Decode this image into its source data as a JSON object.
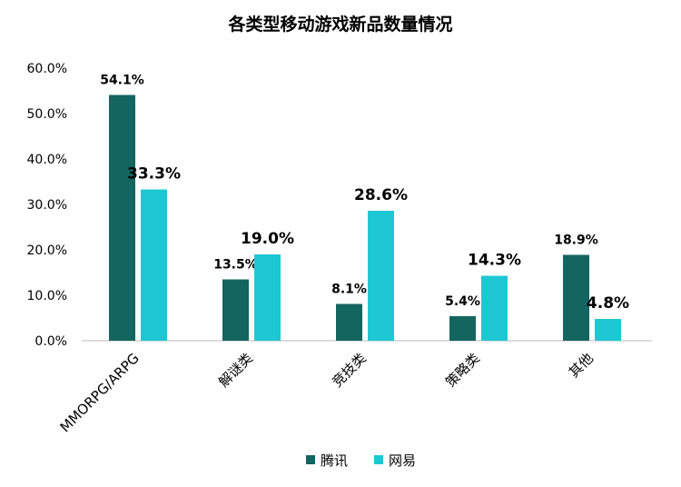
{
  "chart_data": {
    "type": "bar",
    "title": "各类型移动游戏新品数量情况",
    "categories": [
      "MMORPG/ARPG",
      "解谜类",
      "竞技类",
      "策略类",
      "其他"
    ],
    "series": [
      {
        "name": "腾讯",
        "values": [
          54.1,
          13.5,
          8.1,
          5.4,
          18.9
        ],
        "labels": [
          "54.1%",
          "13.5%",
          "8.1%",
          "5.4%",
          "18.9%"
        ]
      },
      {
        "name": "网易",
        "values": [
          33.3,
          19.0,
          28.6,
          14.3,
          4.8
        ],
        "labels": [
          "33.3%",
          "19.0%",
          "28.6%",
          "14.3%",
          "4.8%"
        ]
      }
    ],
    "yticks": [
      "0.0%",
      "10.0%",
      "20.0%",
      "30.0%",
      "40.0%",
      "50.0%",
      "60.0%"
    ],
    "ylim": [
      0,
      60
    ],
    "xlabel": "",
    "ylabel": "",
    "grid": false,
    "legend_position": "bottom",
    "colors": {
      "腾讯": "#13655f",
      "网易": "#1dc8d4"
    }
  }
}
